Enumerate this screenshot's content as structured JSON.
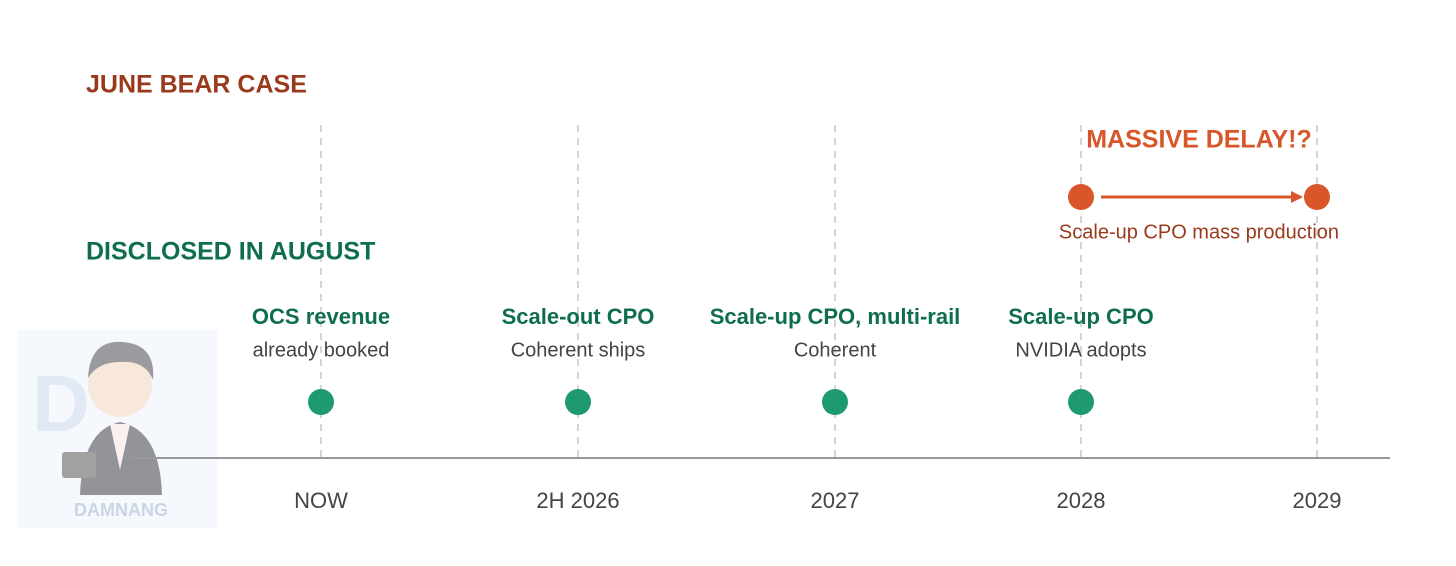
{
  "sections": {
    "bear_case": "JUNE BEAR CASE",
    "disclosed": "DISCLOSED IN AUGUST"
  },
  "delay": {
    "title": "MASSIVE DELAY!?",
    "label": "Scale-up CPO mass production"
  },
  "milestones": [
    {
      "title": "OCS revenue",
      "subtitle": "already booked"
    },
    {
      "title": "Scale-out CPO",
      "subtitle": "Coherent ships"
    },
    {
      "title": "Scale-up CPO, multi-rail",
      "subtitle": "Coherent"
    },
    {
      "title": "Scale-up CPO",
      "subtitle": "NVIDIA adopts"
    }
  ],
  "timeline": [
    "NOW",
    "2H 2026",
    "2027",
    "2028",
    "2029"
  ],
  "logo": {
    "text": "DAMNANG"
  }
}
